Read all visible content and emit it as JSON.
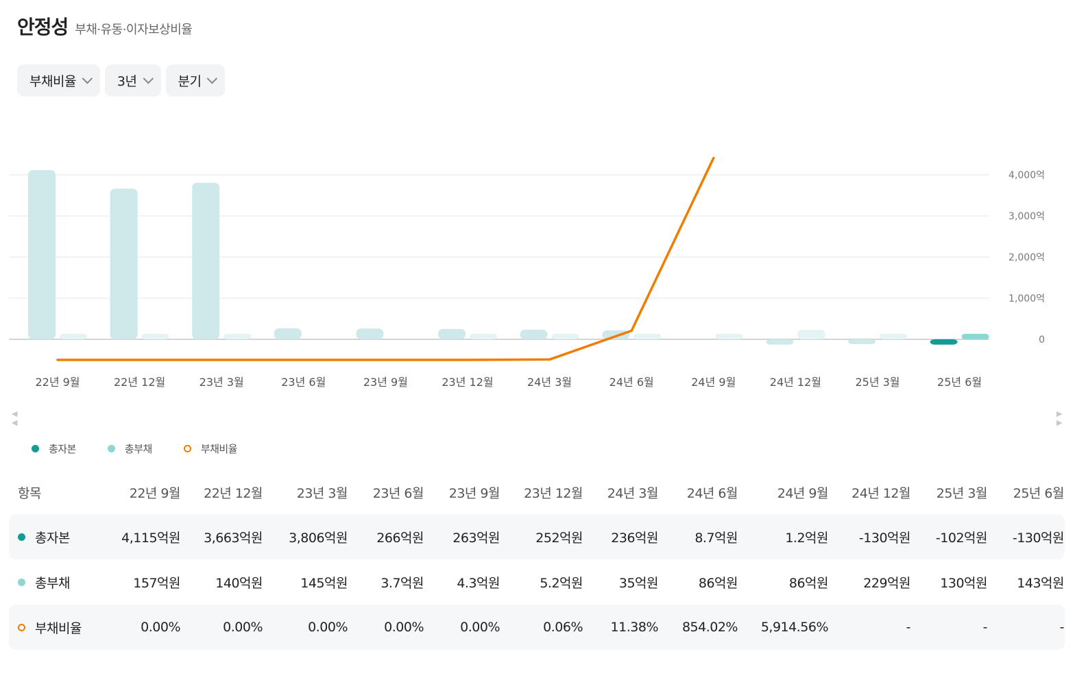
{
  "header": {
    "title": "안정성",
    "subtitle": "부채·유동·이자보상비율"
  },
  "filters": [
    {
      "label": "부채비율"
    },
    {
      "label": "3년"
    },
    {
      "label": "분기"
    }
  ],
  "colors": {
    "equity": "#139b94",
    "liabilities": "#8dd6d3",
    "ratio": "#f07c00",
    "bar_muted": "#cfe9ea"
  },
  "chart_data": {
    "type": "bar",
    "categories": [
      "22년 9월",
      "22년 12월",
      "23년 3월",
      "23년 6월",
      "23년 9월",
      "23년 12월",
      "24년 3월",
      "24년 6월",
      "24년 9월",
      "24년 12월",
      "25년 3월",
      "25년 6월"
    ],
    "series": [
      {
        "name": "총자본",
        "type": "bar",
        "values": [
          4115,
          3663,
          3806,
          266,
          263,
          252,
          236,
          8.7,
          1.2,
          -130,
          -102,
          -130
        ]
      },
      {
        "name": "총부채",
        "type": "bar",
        "values": [
          157,
          140,
          145,
          3.7,
          4.3,
          5.2,
          35,
          86,
          86,
          229,
          130,
          143
        ]
      },
      {
        "name": "부채비율",
        "type": "line",
        "values": [
          0.0,
          0.0,
          0.0,
          0.0,
          0.0,
          0.06,
          11.38,
          854.02,
          5914.56,
          null,
          null,
          null
        ]
      }
    ],
    "y_ticks": [
      "4,000억",
      "3,000억",
      "2,000억",
      "1,000억",
      "0"
    ],
    "y_tick_values": [
      4000,
      3000,
      2000,
      1000,
      0
    ],
    "ylim": [
      -500,
      4500
    ],
    "grid": true
  },
  "legend": [
    {
      "label": "총자본"
    },
    {
      "label": "총부채"
    },
    {
      "label": "부채비율"
    }
  ],
  "table": {
    "header_label": "항목",
    "columns": [
      "22년 9월",
      "22년 12월",
      "23년 3월",
      "23년 6월",
      "23년 9월",
      "23년 12월",
      "24년 3월",
      "24년 6월",
      "24년 9월",
      "24년 12월",
      "25년 3월",
      "25년 6월"
    ],
    "rows": [
      {
        "label": "총자본",
        "values": [
          "4,115억원",
          "3,663억원",
          "3,806억원",
          "266억원",
          "263억원",
          "252억원",
          "236억원",
          "8.7억원",
          "1.2억원",
          "-130억원",
          "-102억원",
          "-130억원"
        ]
      },
      {
        "label": "총부채",
        "values": [
          "157억원",
          "140억원",
          "145억원",
          "3.7억원",
          "4.3억원",
          "5.2억원",
          "35억원",
          "86억원",
          "86억원",
          "229억원",
          "130억원",
          "143억원"
        ]
      },
      {
        "label": "부채비율",
        "values": [
          "0.00%",
          "0.00%",
          "0.00%",
          "0.00%",
          "0.00%",
          "0.06%",
          "11.38%",
          "854.02%",
          "5,914.56%",
          "-",
          "-",
          "-"
        ]
      }
    ]
  },
  "scroll_arrows": {
    "left": "◀",
    "right": "▶"
  }
}
